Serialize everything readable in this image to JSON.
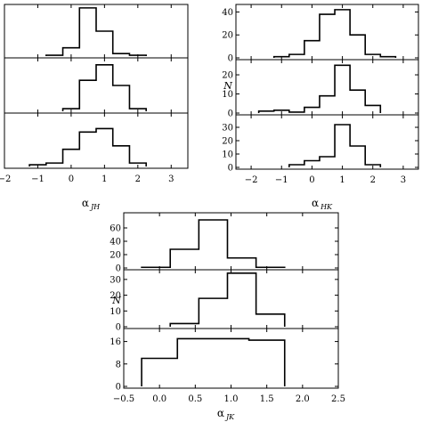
{
  "chart_data": [
    {
      "type": "histogram",
      "group": "JH",
      "xlabel_main": "α",
      "xlabel_sub": "JH",
      "ylabel": "",
      "xlim": [
        -2,
        3.5
      ],
      "x_ticks": [
        -2,
        -1,
        0,
        1,
        2,
        3
      ],
      "x_tick_labels": [
        "−2",
        "−1",
        "0",
        "1",
        "2",
        "3"
      ],
      "shows_y_ticks": false,
      "panels": [
        {
          "bin_edges": [
            -0.75,
            -0.25,
            0.25,
            0.75,
            1.25,
            1.75,
            2.25
          ],
          "values": [
            1,
            10,
            58,
            30,
            3,
            1
          ],
          "ylim": [
            0,
            60
          ],
          "y_ticks": []
        },
        {
          "bin_edges": [
            -0.25,
            0.25,
            0.75,
            1.25,
            1.75,
            2.25
          ],
          "values": [
            1,
            12,
            18,
            10,
            1
          ],
          "ylim": [
            0,
            20
          ],
          "y_ticks": []
        },
        {
          "bin_edges": [
            -1.25,
            -0.75,
            -0.25,
            0.25,
            0.75,
            1.25,
            1.75,
            2.25
          ],
          "values": [
            0.5,
            1,
            5,
            10,
            11,
            6,
            1
          ],
          "ylim": [
            0,
            15
          ],
          "y_ticks": []
        }
      ]
    },
    {
      "type": "histogram",
      "group": "HK",
      "xlabel_main": "α",
      "xlabel_sub": "HK",
      "ylabel": "N",
      "xlim": [
        -2.5,
        3.5
      ],
      "x_ticks": [
        -2,
        -1,
        0,
        1,
        2,
        3
      ],
      "x_tick_labels": [
        "−2",
        "−1",
        "0",
        "1",
        "2",
        "3"
      ],
      "shows_y_ticks": true,
      "panels": [
        {
          "bin_edges": [
            -1.25,
            -0.75,
            -0.25,
            0.25,
            0.75,
            1.25,
            1.75,
            2.25,
            2.75
          ],
          "values": [
            1,
            3,
            15,
            38,
            42,
            20,
            3,
            1
          ],
          "ylim": [
            0,
            45
          ],
          "y_ticks": [
            0,
            20,
            40
          ]
        },
        {
          "bin_edges": [
            -1.75,
            -1.25,
            -0.75,
            -0.25,
            0.25,
            0.75,
            1.25,
            1.75,
            2.25
          ],
          "values": [
            1,
            1.5,
            0.5,
            3,
            9,
            25,
            12,
            4
          ],
          "ylim": [
            0,
            27
          ],
          "y_ticks": [
            0,
            10,
            20
          ]
        },
        {
          "bin_edges": [
            -0.75,
            -0.25,
            0.25,
            0.75,
            1.25,
            1.75,
            2.25
          ],
          "values": [
            2,
            5,
            8,
            32,
            16,
            2
          ],
          "ylim": [
            0,
            38
          ],
          "y_ticks": [
            0,
            10,
            20,
            30
          ]
        }
      ]
    },
    {
      "type": "histogram",
      "group": "JK",
      "xlabel_main": "α",
      "xlabel_sub": "JK",
      "ylabel": "N",
      "xlim": [
        -0.5,
        2.5
      ],
      "x_ticks": [
        -0.5,
        0,
        0.5,
        1,
        1.5,
        2,
        2.5
      ],
      "x_tick_labels": [
        "−0.5",
        "0.0",
        "0.5",
        "1.0",
        "1.5",
        "2.0",
        "2.5"
      ],
      "shows_y_ticks": true,
      "panels": [
        {
          "bin_edges": [
            -0.25,
            0.15,
            0.55,
            0.95,
            1.35,
            1.75
          ],
          "values": [
            1,
            28,
            72,
            15,
            1
          ],
          "ylim": [
            0,
            80
          ],
          "y_ticks": [
            0,
            20,
            40,
            60
          ]
        },
        {
          "bin_edges": [
            0.15,
            0.55,
            0.95,
            1.35,
            1.75
          ],
          "values": [
            2,
            18,
            34,
            8
          ],
          "ylim": [
            0,
            35
          ],
          "y_ticks": [
            0,
            10,
            20,
            30
          ]
        },
        {
          "bin_edges": [
            -0.25,
            0.25,
            0.75,
            1.25,
            1.75
          ],
          "values": [
            10,
            17,
            17,
            16.5
          ],
          "ylim": [
            0,
            20
          ],
          "y_ticks": [
            0,
            8,
            16
          ]
        }
      ]
    }
  ]
}
